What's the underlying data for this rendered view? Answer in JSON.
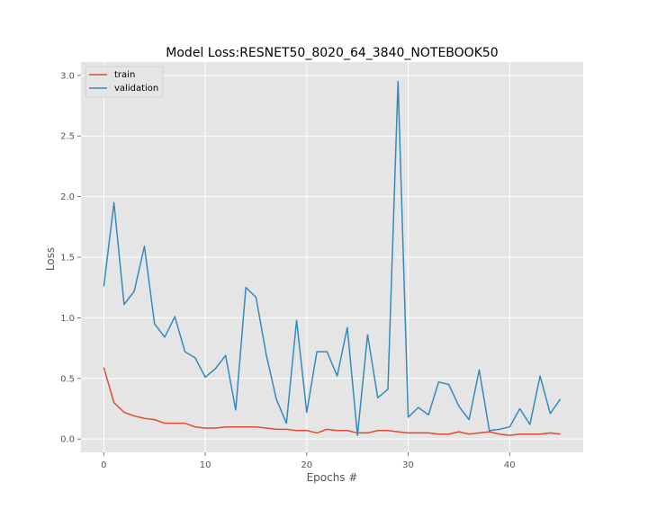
{
  "chart_data": {
    "type": "line",
    "title": "Model Loss:RESNET50_8020_64_3840_NOTEBOOK50",
    "xlabel": "Epochs #",
    "ylabel": "Loss",
    "xlim": [
      -2.25,
      47.25
    ],
    "ylim": [
      -0.11,
      3.11
    ],
    "xticks": [
      0,
      10,
      20,
      30,
      40
    ],
    "yticks": [
      0.0,
      0.5,
      1.0,
      1.5,
      2.0,
      2.5,
      3.0
    ],
    "xtick_labels": [
      "0",
      "10",
      "20",
      "30",
      "40"
    ],
    "ytick_labels": [
      "0.0",
      "0.5",
      "1.0",
      "1.5",
      "2.0",
      "2.5",
      "3.0"
    ],
    "grid": true,
    "legend_position": "top-left",
    "x": [
      0,
      1,
      2,
      3,
      4,
      5,
      6,
      7,
      8,
      9,
      10,
      11,
      12,
      13,
      14,
      15,
      16,
      17,
      18,
      19,
      20,
      21,
      22,
      23,
      24,
      25,
      26,
      27,
      28,
      29,
      30,
      31,
      32,
      33,
      34,
      35,
      36,
      37,
      38,
      39,
      40,
      41,
      42,
      43,
      44,
      45
    ],
    "series": [
      {
        "name": "train",
        "color": "#e24a33",
        "values": [
          0.59,
          0.3,
          0.22,
          0.19,
          0.17,
          0.16,
          0.13,
          0.13,
          0.13,
          0.1,
          0.09,
          0.09,
          0.1,
          0.1,
          0.1,
          0.1,
          0.09,
          0.08,
          0.08,
          0.07,
          0.07,
          0.05,
          0.08,
          0.07,
          0.07,
          0.05,
          0.05,
          0.07,
          0.07,
          0.06,
          0.05,
          0.05,
          0.05,
          0.04,
          0.04,
          0.06,
          0.04,
          0.05,
          0.06,
          0.04,
          0.03,
          0.04,
          0.04,
          0.04,
          0.05,
          0.04
        ]
      },
      {
        "name": "validation",
        "color": "#348abd",
        "values": [
          1.26,
          1.95,
          1.11,
          1.22,
          1.59,
          0.95,
          0.84,
          1.01,
          0.72,
          0.67,
          0.51,
          0.58,
          0.69,
          0.24,
          1.25,
          1.17,
          0.7,
          0.33,
          0.13,
          0.98,
          0.22,
          0.72,
          0.72,
          0.52,
          0.92,
          0.03,
          0.86,
          0.34,
          0.41,
          2.95,
          0.18,
          0.26,
          0.2,
          0.47,
          0.45,
          0.27,
          0.16,
          0.57,
          0.07,
          0.08,
          0.1,
          0.25,
          0.12,
          0.52,
          0.21,
          0.33
        ]
      }
    ]
  }
}
